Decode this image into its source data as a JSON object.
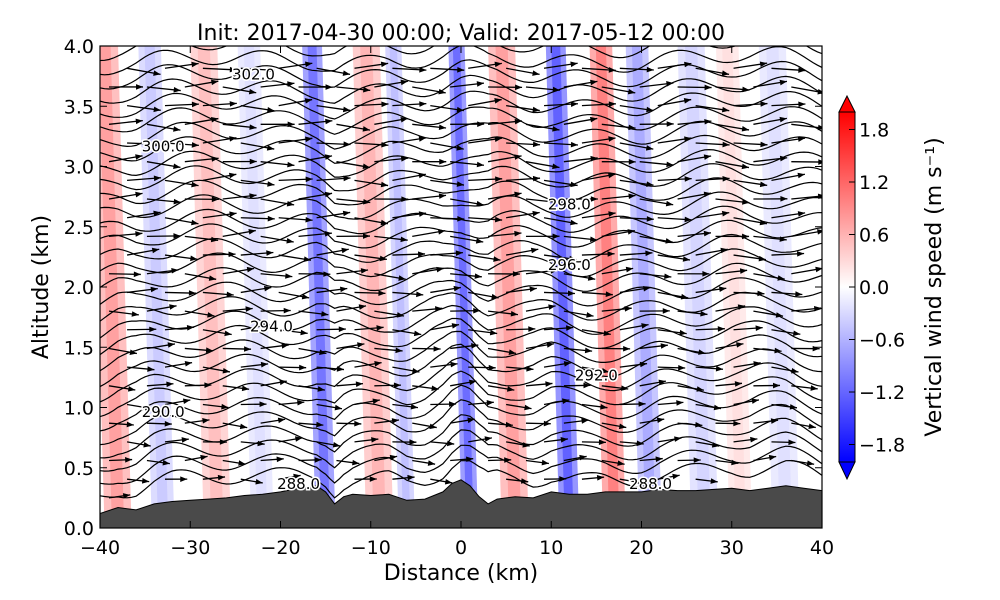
{
  "chart_data": {
    "type": "contour-cross-section",
    "title": "Init: 2017-04-30 00:00; Valid: 2017-05-12 00:00",
    "xlabel": "Distance (km)",
    "ylabel": "Altitude (km)",
    "xlim": [
      -40,
      40
    ],
    "ylim": [
      0.0,
      4.0
    ],
    "xticks": [
      "−40",
      "−30",
      "−20",
      "−10",
      "0",
      "10",
      "20",
      "30",
      "40"
    ],
    "yticks": [
      "0.0",
      "0.5",
      "1.0",
      "1.5",
      "2.0",
      "2.5",
      "3.0",
      "3.5",
      "4.0"
    ],
    "colorbar": {
      "label": "Vertical wind speed (m s⁻¹)",
      "range": [
        -2.0,
        2.0
      ],
      "ticks": [
        "1.8",
        "1.2",
        "0.6",
        "0.0",
        "−0.6",
        "−1.2",
        "−1.8"
      ],
      "colormap": "bwr",
      "extend": "both"
    },
    "terrain_km": {
      "x": [
        -40,
        -38,
        -36,
        -34,
        -32,
        -30,
        -28,
        -26,
        -24,
        -22,
        -20,
        -18,
        -16,
        -15,
        -14,
        -13,
        -12,
        -10,
        -8,
        -6,
        -4,
        -2,
        -1,
        0,
        1,
        2,
        3,
        4,
        6,
        8,
        10,
        12,
        14,
        16,
        18,
        20,
        22,
        24,
        26,
        28,
        30,
        32,
        34,
        36,
        38,
        40
      ],
      "y": [
        0.12,
        0.17,
        0.15,
        0.2,
        0.22,
        0.23,
        0.24,
        0.25,
        0.27,
        0.28,
        0.3,
        0.33,
        0.35,
        0.3,
        0.2,
        0.26,
        0.28,
        0.27,
        0.28,
        0.23,
        0.24,
        0.3,
        0.37,
        0.4,
        0.35,
        0.26,
        0.2,
        0.24,
        0.26,
        0.25,
        0.3,
        0.28,
        0.28,
        0.3,
        0.3,
        0.3,
        0.32,
        0.31,
        0.31,
        0.32,
        0.33,
        0.31,
        0.33,
        0.35,
        0.33,
        0.31
      ]
    },
    "w_bands": [
      {
        "x": -38,
        "width": 3,
        "w": 0.9
      },
      {
        "x": -33,
        "width": 2.5,
        "w": -0.5
      },
      {
        "x": -27,
        "width": 3,
        "w": 0.6
      },
      {
        "x": -22,
        "width": 2.5,
        "w": -0.3
      },
      {
        "x": -15,
        "width": 2.2,
        "w": -1.3
      },
      {
        "x": -9,
        "width": 3,
        "w": 0.7
      },
      {
        "x": -6,
        "width": 1.8,
        "w": -0.6
      },
      {
        "x": 1,
        "width": 1.8,
        "w": -1.4
      },
      {
        "x": 6,
        "width": 3,
        "w": 0.9
      },
      {
        "x": 12,
        "width": 2.2,
        "w": -1.5
      },
      {
        "x": 17,
        "width": 2.5,
        "w": 1.2
      },
      {
        "x": 21,
        "width": 2.5,
        "w": -0.8
      },
      {
        "x": 27,
        "width": 3,
        "w": -0.4
      },
      {
        "x": 31,
        "width": 2.5,
        "w": 0.3
      },
      {
        "x": 36,
        "width": 3,
        "w": -0.3
      }
    ],
    "isentropes": {
      "base_theta": 287.0,
      "interval": 0.5,
      "labels": [
        {
          "text": "288.0",
          "x": -18,
          "y": 0.36
        },
        {
          "text": "288.0",
          "x": 21,
          "y": 0.36
        },
        {
          "text": "290.0",
          "x": -33,
          "y": 0.96
        },
        {
          "text": "292.0",
          "x": 15,
          "y": 1.26
        },
        {
          "text": "294.0",
          "x": -21,
          "y": 1.67
        },
        {
          "text": "296.0",
          "x": 12,
          "y": 2.18
        },
        {
          "text": "298.0",
          "x": 12,
          "y": 2.68
        },
        {
          "text": "300.0",
          "x": -33,
          "y": 3.16
        },
        {
          "text": "302.0",
          "x": -23,
          "y": 3.76
        }
      ]
    }
  }
}
